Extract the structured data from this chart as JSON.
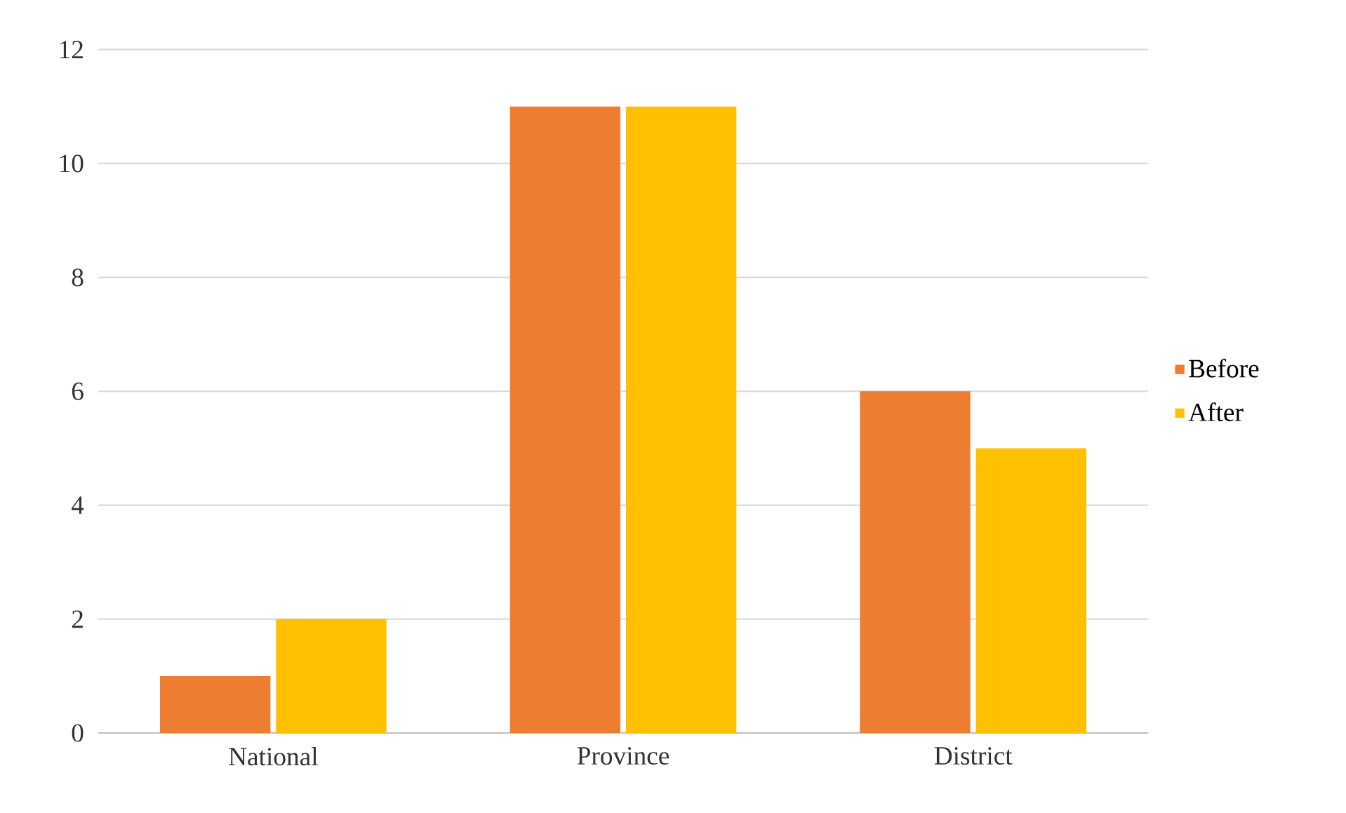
{
  "chart_data": {
    "type": "bar",
    "categories": [
      "National",
      "Province",
      "District"
    ],
    "series": [
      {
        "name": "Before",
        "color": "#ed7d31",
        "values": [
          1,
          11,
          6
        ]
      },
      {
        "name": "After",
        "color": "#ffc000",
        "values": [
          2,
          11,
          5
        ]
      }
    ],
    "ylim": [
      0,
      12
    ],
    "yticks": [
      0,
      2,
      4,
      6,
      8,
      10,
      12
    ],
    "grid": "y",
    "legend": "right"
  }
}
